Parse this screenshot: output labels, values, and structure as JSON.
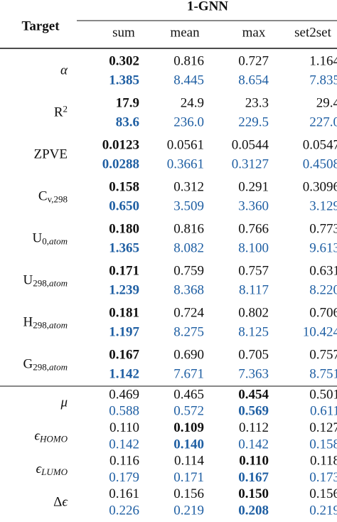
{
  "table": {
    "header": {
      "target": "Target",
      "group": "1-GNN",
      "columns": [
        "sum",
        "mean",
        "max",
        "set2set"
      ]
    },
    "colors": {
      "first": "#111111",
      "second": "#1f5fa3"
    },
    "groups": [
      {
        "label": [
          {
            "t": "α",
            "i": true
          }
        ],
        "rows": [
          {
            "cells": [
              "0.302",
              "0.816",
              "0.727",
              "1.164"
            ],
            "bold": 0
          },
          {
            "cells": [
              "1.385",
              "8.445",
              "8.654",
              "7.835"
            ],
            "bold": 0
          }
        ]
      },
      {
        "label": [
          {
            "t": "R"
          },
          {
            "t": "2",
            "sup": true
          }
        ],
        "rows": [
          {
            "cells": [
              "17.9",
              "24.9",
              "23.3",
              "29.4"
            ],
            "bold": 0
          },
          {
            "cells": [
              "83.6",
              "236.0",
              "229.5",
              "227.0"
            ],
            "bold": 0
          }
        ]
      },
      {
        "label": [
          {
            "t": "ZPVE"
          }
        ],
        "rows": [
          {
            "cells": [
              "0.0123",
              "0.0561",
              "0.0544",
              "0.0547"
            ],
            "bold": 0
          },
          {
            "cells": [
              "0.0288",
              "0.3661",
              "0.3127",
              "0.4508"
            ],
            "bold": 0
          }
        ]
      },
      {
        "label": [
          {
            "t": "C"
          },
          {
            "t": "v,298",
            "sub": true
          }
        ],
        "rows": [
          {
            "cells": [
              "0.158",
              "0.312",
              "0.291",
              "0.3096"
            ],
            "bold": 0
          },
          {
            "cells": [
              "0.650",
              "3.509",
              "3.360",
              "3.129"
            ],
            "bold": 0
          }
        ]
      },
      {
        "label": [
          {
            "t": "U"
          },
          {
            "t": "0,",
            "sub": true
          },
          {
            "t": "atom",
            "sub": true,
            "i": true
          }
        ],
        "rows": [
          {
            "cells": [
              "0.180",
              "0.816",
              "0.766",
              "0.773"
            ],
            "bold": 0
          },
          {
            "cells": [
              "1.365",
              "8.082",
              "8.100",
              "9.613"
            ],
            "bold": 0
          }
        ]
      },
      {
        "label": [
          {
            "t": "U"
          },
          {
            "t": "298,",
            "sub": true
          },
          {
            "t": "atom",
            "sub": true,
            "i": true
          }
        ],
        "rows": [
          {
            "cells": [
              "0.171",
              "0.759",
              "0.757",
              "0.631"
            ],
            "bold": 0
          },
          {
            "cells": [
              "1.239",
              "8.368",
              "8.117",
              "8.220"
            ],
            "bold": 0
          }
        ]
      },
      {
        "label": [
          {
            "t": "H"
          },
          {
            "t": "298,",
            "sub": true
          },
          {
            "t": "atom",
            "sub": true,
            "i": true
          }
        ],
        "rows": [
          {
            "cells": [
              "0.181",
              "0.724",
              "0.802",
              "0.706"
            ],
            "bold": 0
          },
          {
            "cells": [
              "1.197",
              "8.275",
              "8.125",
              "10.424"
            ],
            "bold": 0
          }
        ]
      },
      {
        "label": [
          {
            "t": "G"
          },
          {
            "t": "298,",
            "sub": true
          },
          {
            "t": "atom",
            "sub": true,
            "i": true
          }
        ],
        "rows": [
          {
            "cells": [
              "0.167",
              "0.690",
              "0.705",
              "0.757"
            ],
            "bold": 0
          },
          {
            "cells": [
              "1.142",
              "7.671",
              "7.363",
              "8.751"
            ],
            "bold": 0
          }
        ]
      },
      {
        "label": [
          {
            "t": "μ",
            "i": true
          }
        ],
        "rows": [
          {
            "cells": [
              "0.469",
              "0.465",
              "0.454",
              "0.501"
            ],
            "bold": 2
          },
          {
            "cells": [
              "0.588",
              "0.572",
              "0.569",
              "0.611"
            ],
            "bold": 2
          }
        ]
      },
      {
        "label": [
          {
            "t": "ϵ",
            "i": true
          },
          {
            "t": "HOMO",
            "sub": true,
            "i": true
          }
        ],
        "rows": [
          {
            "cells": [
              "0.110",
              "0.109",
              "0.112",
              "0.127"
            ],
            "bold": 1
          },
          {
            "cells": [
              "0.142",
              "0.140",
              "0.142",
              "0.158"
            ],
            "bold": 1
          }
        ]
      },
      {
        "label": [
          {
            "t": "ϵ",
            "i": true
          },
          {
            "t": "LUMO",
            "sub": true,
            "i": true
          }
        ],
        "rows": [
          {
            "cells": [
              "0.116",
              "0.114",
              "0.110",
              "0.118"
            ],
            "bold": 2
          },
          {
            "cells": [
              "0.179",
              "0.171",
              "0.167",
              "0.173"
            ],
            "bold": 2
          }
        ]
      },
      {
        "label": [
          {
            "t": "Δ"
          },
          {
            "t": "ϵ",
            "i": true
          }
        ],
        "rows": [
          {
            "cells": [
              "0.161",
              "0.156",
              "0.150",
              "0.156"
            ],
            "bold": 2
          },
          {
            "cells": [
              "0.226",
              "0.219",
              "0.208",
              "0.219"
            ],
            "bold": 2
          }
        ]
      }
    ]
  }
}
